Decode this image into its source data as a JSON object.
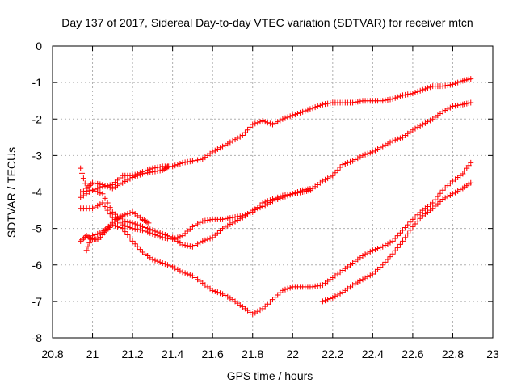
{
  "chart_data": {
    "type": "scatter",
    "title": "Day 137 of 2017, Sidereal Day-to-day VTEC variation (SDTVAR) for receiver mtcn",
    "xlabel": "GPS time / hours",
    "ylabel": "SDTVAR / TECUs",
    "xlim": [
      20.8,
      23.0
    ],
    "ylim": [
      -8,
      0
    ],
    "xticks": [
      "20.8",
      "21",
      "21.2",
      "21.4",
      "21.6",
      "21.8",
      "22",
      "22.2",
      "22.4",
      "22.6",
      "22.8",
      "23"
    ],
    "yticks": [
      "0",
      "-1",
      "-2",
      "-3",
      "-4",
      "-5",
      "-6",
      "-7",
      "-8"
    ],
    "grid": true,
    "marker": "+",
    "color": "#ff0000",
    "series": [
      {
        "points": [
          [
            20.94,
            -4.0
          ],
          [
            21.0,
            -3.95
          ],
          [
            21.05,
            -3.85
          ],
          [
            21.1,
            -3.8
          ],
          [
            21.15,
            -3.55
          ],
          [
            21.2,
            -3.55
          ],
          [
            21.25,
            -3.45
          ],
          [
            21.3,
            -3.35
          ],
          [
            21.35,
            -3.3
          ],
          [
            21.4,
            -3.3
          ],
          [
            21.45,
            -3.2
          ],
          [
            21.5,
            -3.15
          ],
          [
            21.55,
            -3.1
          ],
          [
            21.6,
            -2.9
          ],
          [
            21.65,
            -2.75
          ],
          [
            21.7,
            -2.6
          ],
          [
            21.75,
            -2.45
          ],
          [
            21.8,
            -2.15
          ],
          [
            21.85,
            -2.05
          ],
          [
            21.9,
            -2.15
          ],
          [
            21.95,
            -2.0
          ],
          [
            22.0,
            -1.9
          ],
          [
            22.05,
            -1.8
          ],
          [
            22.1,
            -1.7
          ],
          [
            22.15,
            -1.6
          ],
          [
            22.2,
            -1.55
          ],
          [
            22.25,
            -1.55
          ],
          [
            22.3,
            -1.55
          ],
          [
            22.35,
            -1.5
          ],
          [
            22.4,
            -1.5
          ],
          [
            22.45,
            -1.5
          ],
          [
            22.5,
            -1.45
          ],
          [
            22.55,
            -1.35
          ],
          [
            22.6,
            -1.3
          ],
          [
            22.65,
            -1.2
          ],
          [
            22.7,
            -1.1
          ],
          [
            22.75,
            -1.1
          ],
          [
            22.8,
            -1.05
          ],
          [
            22.85,
            -0.95
          ],
          [
            22.89,
            -0.9
          ]
        ]
      },
      {
        "points": [
          [
            20.94,
            -4.45
          ],
          [
            21.0,
            -4.45
          ],
          [
            21.05,
            -4.3
          ],
          [
            21.1,
            -4.7
          ],
          [
            21.15,
            -4.9
          ],
          [
            21.2,
            -5.0
          ],
          [
            21.25,
            -5.05
          ],
          [
            21.3,
            -5.15
          ],
          [
            21.35,
            -5.25
          ],
          [
            21.4,
            -5.3
          ],
          [
            21.45,
            -5.2
          ],
          [
            21.5,
            -4.95
          ],
          [
            21.55,
            -4.8
          ],
          [
            21.6,
            -4.75
          ],
          [
            21.65,
            -4.75
          ],
          [
            21.7,
            -4.7
          ],
          [
            21.75,
            -4.65
          ],
          [
            21.8,
            -4.55
          ],
          [
            21.85,
            -4.3
          ],
          [
            21.9,
            -4.2
          ],
          [
            21.95,
            -4.1
          ],
          [
            22.0,
            -4.05
          ],
          [
            22.05,
            -3.95
          ],
          [
            22.1,
            -3.9
          ],
          [
            22.15,
            -3.7
          ],
          [
            22.2,
            -3.55
          ],
          [
            22.25,
            -3.25
          ],
          [
            22.3,
            -3.15
          ],
          [
            22.35,
            -3.0
          ],
          [
            22.4,
            -2.9
          ],
          [
            22.45,
            -2.75
          ],
          [
            22.5,
            -2.6
          ],
          [
            22.55,
            -2.5
          ],
          [
            22.6,
            -2.3
          ],
          [
            22.65,
            -2.15
          ],
          [
            22.7,
            -2.0
          ],
          [
            22.75,
            -1.8
          ],
          [
            22.8,
            -1.65
          ],
          [
            22.85,
            -1.6
          ],
          [
            22.89,
            -1.55
          ]
        ]
      },
      {
        "points": [
          [
            20.94,
            -3.35
          ],
          [
            20.97,
            -3.9
          ],
          [
            21.0,
            -3.75
          ],
          [
            21.05,
            -3.8
          ],
          [
            21.1,
            -3.9
          ],
          [
            21.15,
            -3.75
          ],
          [
            21.2,
            -3.6
          ],
          [
            21.25,
            -3.5
          ],
          [
            21.3,
            -3.45
          ],
          [
            21.35,
            -3.4
          ],
          [
            21.38,
            -3.3
          ]
        ]
      },
      {
        "points": [
          [
            20.94,
            -4.15
          ],
          [
            21.0,
            -3.95
          ],
          [
            21.05,
            -4.05
          ],
          [
            21.1,
            -4.55
          ],
          [
            21.15,
            -4.8
          ],
          [
            21.2,
            -4.85
          ],
          [
            21.25,
            -4.95
          ],
          [
            21.3,
            -5.05
          ],
          [
            21.35,
            -5.15
          ],
          [
            21.4,
            -5.25
          ],
          [
            21.45,
            -5.45
          ],
          [
            21.5,
            -5.5
          ],
          [
            21.55,
            -5.35
          ],
          [
            21.6,
            -5.25
          ],
          [
            21.65,
            -5.0
          ],
          [
            21.7,
            -4.85
          ],
          [
            21.75,
            -4.7
          ],
          [
            21.8,
            -4.5
          ],
          [
            21.85,
            -4.4
          ],
          [
            21.9,
            -4.25
          ],
          [
            21.95,
            -4.15
          ],
          [
            22.0,
            -4.05
          ],
          [
            22.05,
            -4.0
          ],
          [
            22.09,
            -3.95
          ]
        ]
      },
      {
        "points": [
          [
            20.94,
            -5.35
          ],
          [
            20.97,
            -5.2
          ],
          [
            21.0,
            -5.3
          ],
          [
            21.03,
            -5.3
          ],
          [
            21.07,
            -5.05
          ],
          [
            21.1,
            -4.9
          ],
          [
            21.15,
            -5.0
          ],
          [
            21.2,
            -5.35
          ],
          [
            21.25,
            -5.65
          ],
          [
            21.3,
            -5.85
          ],
          [
            21.35,
            -5.95
          ],
          [
            21.4,
            -6.05
          ],
          [
            21.45,
            -6.2
          ],
          [
            21.5,
            -6.3
          ],
          [
            21.55,
            -6.5
          ],
          [
            21.6,
            -6.7
          ],
          [
            21.65,
            -6.8
          ],
          [
            21.7,
            -6.95
          ],
          [
            21.75,
            -7.15
          ],
          [
            21.8,
            -7.35
          ],
          [
            21.85,
            -7.2
          ],
          [
            21.9,
            -6.95
          ],
          [
            21.95,
            -6.7
          ],
          [
            22.0,
            -6.6
          ],
          [
            22.05,
            -6.6
          ],
          [
            22.1,
            -6.6
          ],
          [
            22.15,
            -6.55
          ],
          [
            22.2,
            -6.35
          ],
          [
            22.25,
            -6.15
          ],
          [
            22.3,
            -5.95
          ],
          [
            22.35,
            -5.75
          ],
          [
            22.4,
            -5.6
          ],
          [
            22.45,
            -5.5
          ],
          [
            22.5,
            -5.35
          ],
          [
            22.55,
            -5.05
          ],
          [
            22.6,
            -4.75
          ],
          [
            22.65,
            -4.5
          ],
          [
            22.7,
            -4.3
          ],
          [
            22.75,
            -3.95
          ],
          [
            22.8,
            -3.7
          ],
          [
            22.85,
            -3.5
          ],
          [
            22.89,
            -3.2
          ]
        ]
      },
      {
        "points": [
          [
            20.97,
            -5.6
          ],
          [
            21.0,
            -5.2
          ],
          [
            21.05,
            -5.1
          ],
          [
            21.08,
            -4.95
          ],
          [
            21.12,
            -4.75
          ],
          [
            21.15,
            -4.65
          ],
          [
            21.2,
            -4.55
          ],
          [
            21.25,
            -4.75
          ],
          [
            21.28,
            -4.85
          ]
        ]
      },
      {
        "points": [
          [
            22.15,
            -7.0
          ],
          [
            22.2,
            -6.9
          ],
          [
            22.25,
            -6.75
          ],
          [
            22.3,
            -6.55
          ],
          [
            22.35,
            -6.4
          ],
          [
            22.4,
            -6.25
          ],
          [
            22.45,
            -6.0
          ],
          [
            22.5,
            -5.7
          ],
          [
            22.55,
            -5.35
          ],
          [
            22.6,
            -4.95
          ],
          [
            22.65,
            -4.65
          ],
          [
            22.7,
            -4.45
          ],
          [
            22.75,
            -4.2
          ],
          [
            22.8,
            -4.05
          ],
          [
            22.85,
            -3.9
          ],
          [
            22.89,
            -3.75
          ]
        ]
      }
    ]
  }
}
